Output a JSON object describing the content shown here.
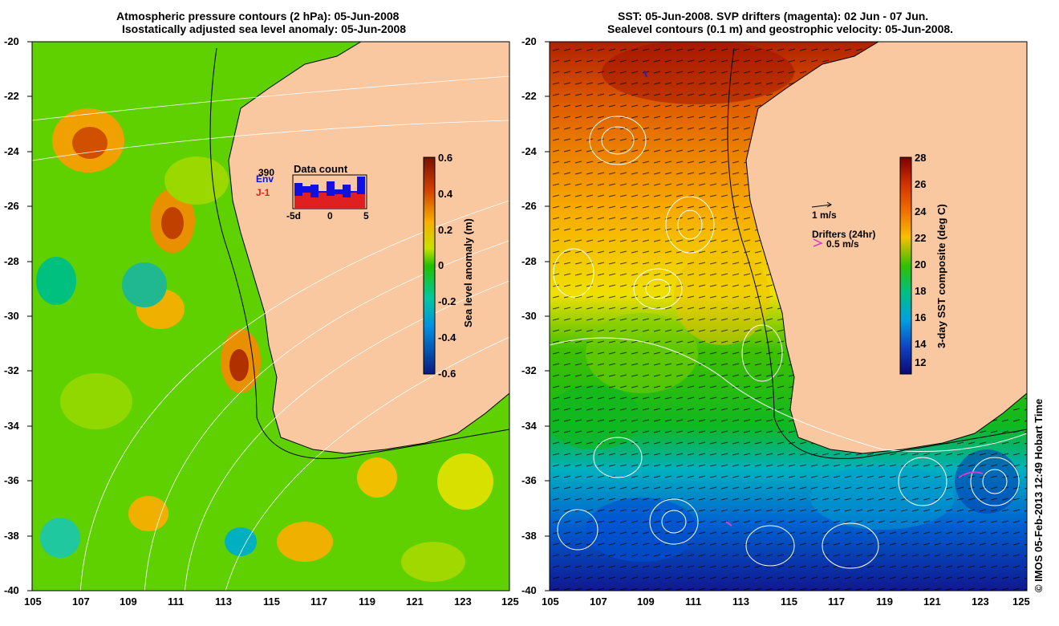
{
  "left_panel": {
    "title_line1": "Atmospheric pressure contours (2 hPa): 05-Jun-2008",
    "title_line2": "Isostatically adjusted sea level anomaly: 05-Jun-2008",
    "y_ticks": [
      "-20",
      "-22",
      "-24",
      "-26",
      "-28",
      "-30",
      "-32",
      "-34",
      "-36",
      "-38",
      "-40"
    ],
    "x_ticks": [
      "105",
      "107",
      "109",
      "111",
      "113",
      "115",
      "117",
      "119",
      "121",
      "123",
      "125"
    ],
    "colorbar_ticks": [
      "0.6",
      "0.4",
      "0.2",
      "0",
      "-0.2",
      "-0.4",
      "-0.6"
    ],
    "colorbar_label": "Sea level anomaly (m)",
    "inset": {
      "title": "Data count",
      "count": "390",
      "label_envisat": "Env",
      "label_jason": "J-1",
      "ticks": [
        "-5d",
        "0",
        "5"
      ]
    },
    "colors": {
      "positive": "#b03000",
      "zero": "#22c000",
      "negative": "#1020a0",
      "land": "#f9c7a0"
    }
  },
  "right_panel": {
    "title_line1": "SST: 05-Jun-2008. SVP drifters (magenta): 02 Jun - 07 Jun.",
    "title_line2": "Sealevel contours (0.1 m) and geostrophic velocity: 05-Jun-2008.",
    "y_ticks": [
      "-20",
      "-22",
      "-24",
      "-26",
      "-28",
      "-30",
      "-32",
      "-34",
      "-36",
      "-38",
      "-40"
    ],
    "x_ticks": [
      "105",
      "107",
      "109",
      "111",
      "113",
      "115",
      "117",
      "119",
      "121",
      "123",
      "125"
    ],
    "colorbar_ticks": [
      "28",
      "26",
      "24",
      "22",
      "20",
      "18",
      "16",
      "14",
      "12"
    ],
    "colorbar_label": "3-day SST composite (deg C)",
    "legend_velocity": "1 m/s",
    "legend_drifters_title": "Drifters (24hr)",
    "legend_drifters_scale": "0.5 m/s",
    "colors": {
      "warm": "#b01000",
      "mid": "#30c000",
      "cold": "#1010a0",
      "drifter": "#d040d0",
      "land": "#f9c7a0"
    }
  },
  "credit": "© IMOS 05-Feb-2013 12:49 Hobart Time"
}
